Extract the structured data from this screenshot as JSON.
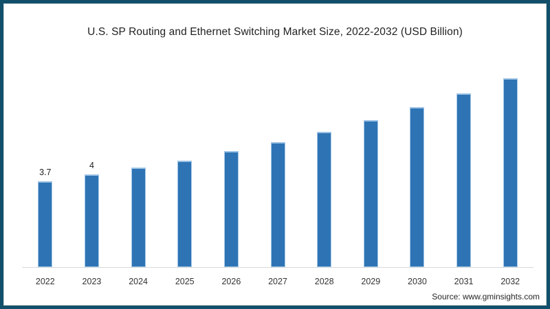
{
  "title": "U.S. SP Routing and Ethernet Switching Market Size, 2022-2032 (USD Billion)",
  "source": "Source: www.gminsights.com",
  "colors": {
    "frame_border": "#114f6b",
    "bar_fill": "#2e74b4",
    "bar_cap": "#9cc2e5",
    "axis_line": "#d9d9d9",
    "text": "#1f1f1f"
  },
  "chart_data": {
    "type": "bar",
    "title": "U.S. SP Routing and Ethernet Switching Market Size, 2022-2032 (USD Billion)",
    "categories": [
      "2022",
      "2023",
      "2024",
      "2025",
      "2026",
      "2027",
      "2028",
      "2029",
      "2030",
      "2031",
      "2032"
    ],
    "values": [
      3.7,
      4,
      4.3,
      4.6,
      5.0,
      5.4,
      5.85,
      6.35,
      6.9,
      7.5,
      8.15
    ],
    "data_labels": [
      "3.7",
      "4",
      "",
      "",
      "",
      "",
      "",
      "",
      "",
      "",
      ""
    ],
    "xlabel": "",
    "ylabel": "USD Billion",
    "ylim": [
      0,
      8.9
    ],
    "grid": false,
    "legend": false,
    "annotations": [
      "Source: www.gminsights.com"
    ]
  }
}
